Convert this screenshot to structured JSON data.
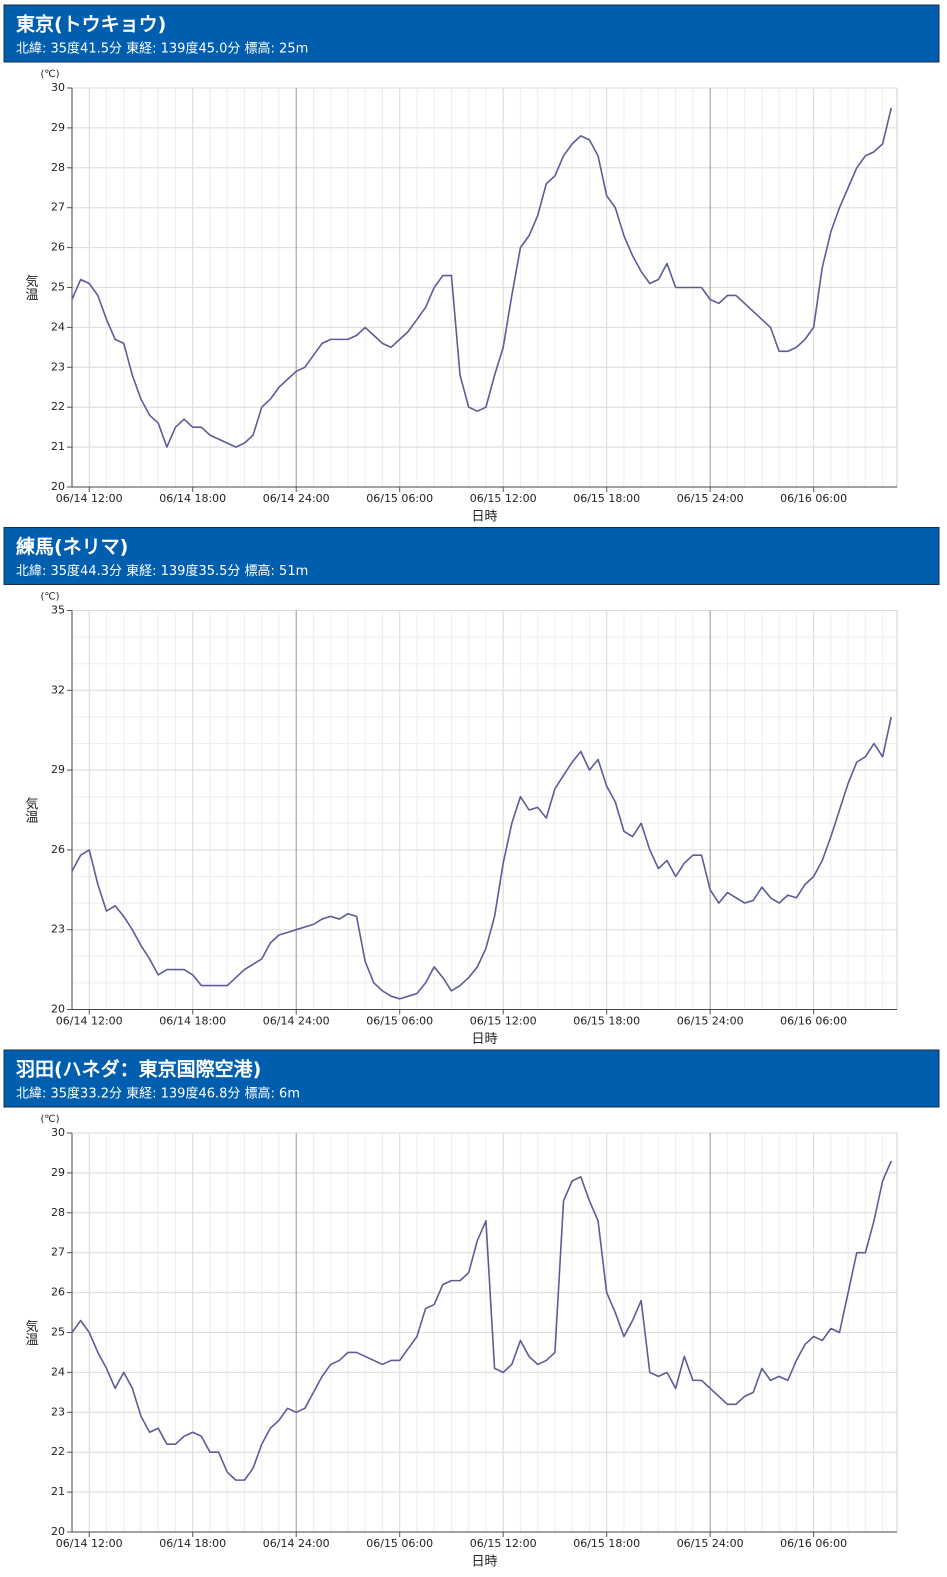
{
  "chart_data": [
    {
      "type": "line",
      "title": "東京(トウキョウ)",
      "subtitle": "北緯: 35度41.5分 東経: 139度45.0分 標高: 25m",
      "y_unit_label": "(℃)",
      "ylabel": "気温",
      "xlabel": "日時",
      "color": "#5c5c98",
      "grid": true,
      "xlim": [
        "06/14 11:00",
        "06/16 10:50"
      ],
      "xticks": [
        "06/14 12:00",
        "06/14 18:00",
        "06/14 24:00",
        "06/15 06:00",
        "06/15 12:00",
        "06/15 18:00",
        "06/15 24:00",
        "06/16 06:00"
      ],
      "ylim": [
        20,
        30
      ],
      "yticks": [
        20,
        21,
        22,
        23,
        24,
        25,
        26,
        27,
        28,
        29,
        30
      ],
      "x": [
        "06/14 11:00",
        "06/14 11:30",
        "06/14 12:00",
        "06/14 12:30",
        "06/14 13:00",
        "06/14 13:30",
        "06/14 14:00",
        "06/14 14:30",
        "06/14 15:00",
        "06/14 15:30",
        "06/14 16:00",
        "06/14 16:30",
        "06/14 17:00",
        "06/14 17:30",
        "06/14 18:00",
        "06/14 18:30",
        "06/14 19:00",
        "06/14 19:30",
        "06/14 20:00",
        "06/14 20:30",
        "06/14 21:00",
        "06/14 21:30",
        "06/14 22:00",
        "06/14 22:30",
        "06/14 23:00",
        "06/14 23:30",
        "06/15 00:00",
        "06/15 00:30",
        "06/15 01:00",
        "06/15 01:30",
        "06/15 02:00",
        "06/15 02:30",
        "06/15 03:00",
        "06/15 03:30",
        "06/15 04:00",
        "06/15 04:30",
        "06/15 05:00",
        "06/15 05:30",
        "06/15 06:00",
        "06/15 06:30",
        "06/15 07:00",
        "06/15 07:30",
        "06/15 08:00",
        "06/15 08:30",
        "06/15 09:00",
        "06/15 09:30",
        "06/15 10:00",
        "06/15 10:30",
        "06/15 11:00",
        "06/15 11:30",
        "06/15 12:00",
        "06/15 12:30",
        "06/15 13:00",
        "06/15 13:30",
        "06/15 14:00",
        "06/15 14:30",
        "06/15 15:00",
        "06/15 15:30",
        "06/15 16:00",
        "06/15 16:30",
        "06/15 17:00",
        "06/15 17:30",
        "06/15 18:00",
        "06/15 18:30",
        "06/15 19:00",
        "06/15 19:30",
        "06/15 20:00",
        "06/15 20:30",
        "06/15 21:00",
        "06/15 21:30",
        "06/15 22:00",
        "06/15 22:30",
        "06/15 23:00",
        "06/15 23:30",
        "06/16 00:00",
        "06/16 00:30",
        "06/16 01:00",
        "06/16 01:30",
        "06/16 02:00",
        "06/16 02:30",
        "06/16 03:00",
        "06/16 03:30",
        "06/16 04:00",
        "06/16 04:30",
        "06/16 05:00",
        "06/16 05:30",
        "06/16 06:00",
        "06/16 06:30",
        "06/16 07:00",
        "06/16 07:30",
        "06/16 08:00",
        "06/16 08:30",
        "06/16 09:00",
        "06/16 09:30",
        "06/16 10:00",
        "06/16 10:30"
      ],
      "values": [
        24.7,
        25.2,
        25.1,
        24.8,
        24.2,
        23.7,
        23.6,
        22.8,
        22.2,
        21.8,
        21.6,
        21.0,
        21.5,
        21.7,
        21.5,
        21.5,
        21.3,
        21.2,
        21.1,
        21.0,
        21.1,
        21.3,
        22.0,
        22.2,
        22.5,
        22.7,
        22.9,
        23.0,
        23.3,
        23.6,
        23.7,
        23.7,
        23.7,
        23.8,
        24.0,
        23.8,
        23.6,
        23.5,
        23.7,
        23.9,
        24.2,
        24.5,
        25.0,
        25.3,
        25.3,
        22.8,
        22.0,
        21.9,
        22.0,
        22.8,
        23.5,
        24.8,
        26.0,
        26.3,
        26.8,
        27.6,
        27.8,
        28.3,
        28.6,
        28.8,
        28.7,
        28.3,
        27.3,
        27.0,
        26.3,
        25.8,
        25.4,
        25.1,
        25.2,
        25.6,
        25.0,
        25.0,
        25.0,
        25.0,
        24.7,
        24.6,
        24.8,
        24.8,
        24.6,
        24.4,
        24.2,
        24.0,
        23.4,
        23.4,
        23.5,
        23.7,
        24.0,
        25.5,
        26.4,
        27.0,
        27.5,
        28.0,
        28.3,
        28.4,
        28.6,
        29.5
      ]
    },
    {
      "type": "line",
      "title": "練馬(ネリマ)",
      "subtitle": "北緯: 35度44.3分 東経: 139度35.5分 標高: 51m",
      "y_unit_label": "(℃)",
      "ylabel": "気温",
      "xlabel": "日時",
      "color": "#5c5c98",
      "grid": true,
      "xlim": [
        "06/14 11:00",
        "06/16 10:50"
      ],
      "xticks": [
        "06/14 12:00",
        "06/14 18:00",
        "06/14 24:00",
        "06/15 06:00",
        "06/15 12:00",
        "06/15 18:00",
        "06/15 24:00",
        "06/16 06:00"
      ],
      "ylim": [
        20,
        35
      ],
      "yticks": [
        20,
        23,
        26,
        29,
        32,
        35
      ],
      "x": [
        "06/14 11:00",
        "06/14 11:30",
        "06/14 12:00",
        "06/14 12:30",
        "06/14 13:00",
        "06/14 13:30",
        "06/14 14:00",
        "06/14 14:30",
        "06/14 15:00",
        "06/14 15:30",
        "06/14 16:00",
        "06/14 16:30",
        "06/14 17:00",
        "06/14 17:30",
        "06/14 18:00",
        "06/14 18:30",
        "06/14 19:00",
        "06/14 19:30",
        "06/14 20:00",
        "06/14 20:30",
        "06/14 21:00",
        "06/14 21:30",
        "06/14 22:00",
        "06/14 22:30",
        "06/14 23:00",
        "06/14 23:30",
        "06/15 00:00",
        "06/15 00:30",
        "06/15 01:00",
        "06/15 01:30",
        "06/15 02:00",
        "06/15 02:30",
        "06/15 03:00",
        "06/15 03:30",
        "06/15 04:00",
        "06/15 04:30",
        "06/15 05:00",
        "06/15 05:30",
        "06/15 06:00",
        "06/15 06:30",
        "06/15 07:00",
        "06/15 07:30",
        "06/15 08:00",
        "06/15 08:30",
        "06/15 09:00",
        "06/15 09:30",
        "06/15 10:00",
        "06/15 10:30",
        "06/15 11:00",
        "06/15 11:30",
        "06/15 12:00",
        "06/15 12:30",
        "06/15 13:00",
        "06/15 13:30",
        "06/15 14:00",
        "06/15 14:30",
        "06/15 15:00",
        "06/15 15:30",
        "06/15 16:00",
        "06/15 16:30",
        "06/15 17:00",
        "06/15 17:30",
        "06/15 18:00",
        "06/15 18:30",
        "06/15 19:00",
        "06/15 19:30",
        "06/15 20:00",
        "06/15 20:30",
        "06/15 21:00",
        "06/15 21:30",
        "06/15 22:00",
        "06/15 22:30",
        "06/15 23:00",
        "06/15 23:30",
        "06/16 00:00",
        "06/16 00:30",
        "06/16 01:00",
        "06/16 01:30",
        "06/16 02:00",
        "06/16 02:30",
        "06/16 03:00",
        "06/16 03:30",
        "06/16 04:00",
        "06/16 04:30",
        "06/16 05:00",
        "06/16 05:30",
        "06/16 06:00",
        "06/16 06:30",
        "06/16 07:00",
        "06/16 07:30",
        "06/16 08:00",
        "06/16 08:30",
        "06/16 09:00",
        "06/16 09:30",
        "06/16 10:00",
        "06/16 10:30"
      ],
      "values": [
        25.2,
        25.8,
        26.0,
        24.7,
        23.7,
        23.9,
        23.5,
        23.0,
        22.4,
        21.9,
        21.3,
        21.5,
        21.5,
        21.5,
        21.3,
        20.9,
        20.9,
        20.9,
        20.9,
        21.2,
        21.5,
        21.7,
        21.9,
        22.5,
        22.8,
        22.9,
        23.0,
        23.1,
        23.2,
        23.4,
        23.5,
        23.4,
        23.6,
        23.5,
        21.8,
        21.0,
        20.7,
        20.5,
        20.4,
        20.5,
        20.6,
        21.0,
        21.6,
        21.2,
        20.7,
        20.9,
        21.2,
        21.6,
        22.3,
        23.5,
        25.5,
        27.0,
        28.0,
        27.5,
        27.6,
        27.2,
        28.3,
        28.8,
        29.3,
        29.7,
        29.0,
        29.4,
        28.4,
        27.8,
        26.7,
        26.5,
        27.0,
        26.0,
        25.3,
        25.6,
        25.0,
        25.5,
        25.8,
        25.8,
        24.5,
        24.0,
        24.4,
        24.2,
        24.0,
        24.1,
        24.6,
        24.2,
        24.0,
        24.3,
        24.2,
        24.7,
        25.0,
        25.6,
        26.5,
        27.5,
        28.5,
        29.3,
        29.5,
        30.0,
        29.5,
        31.0
      ]
    },
    {
      "type": "line",
      "title": "羽田(ハネダ：東京国際空港)",
      "subtitle": "北緯: 35度33.2分 東経: 139度46.8分 標高: 6m",
      "y_unit_label": "(℃)",
      "ylabel": "気温",
      "xlabel": "日時",
      "color": "#5c5c98",
      "grid": true,
      "xlim": [
        "06/14 11:00",
        "06/16 10:50"
      ],
      "xticks": [
        "06/14 12:00",
        "06/14 18:00",
        "06/14 24:00",
        "06/15 06:00",
        "06/15 12:00",
        "06/15 18:00",
        "06/15 24:00",
        "06/16 06:00"
      ],
      "ylim": [
        20,
        30
      ],
      "yticks": [
        20,
        21,
        22,
        23,
        24,
        25,
        26,
        27,
        28,
        29,
        30
      ],
      "x": [
        "06/14 11:00",
        "06/14 11:30",
        "06/14 12:00",
        "06/14 12:30",
        "06/14 13:00",
        "06/14 13:30",
        "06/14 14:00",
        "06/14 14:30",
        "06/14 15:00",
        "06/14 15:30",
        "06/14 16:00",
        "06/14 16:30",
        "06/14 17:00",
        "06/14 17:30",
        "06/14 18:00",
        "06/14 18:30",
        "06/14 19:00",
        "06/14 19:30",
        "06/14 20:00",
        "06/14 20:30",
        "06/14 21:00",
        "06/14 21:30",
        "06/14 22:00",
        "06/14 22:30",
        "06/14 23:00",
        "06/14 23:30",
        "06/15 00:00",
        "06/15 00:30",
        "06/15 01:00",
        "06/15 01:30",
        "06/15 02:00",
        "06/15 02:30",
        "06/15 03:00",
        "06/15 03:30",
        "06/15 04:00",
        "06/15 04:30",
        "06/15 05:00",
        "06/15 05:30",
        "06/15 06:00",
        "06/15 06:30",
        "06/15 07:00",
        "06/15 07:30",
        "06/15 08:00",
        "06/15 08:30",
        "06/15 09:00",
        "06/15 09:30",
        "06/15 10:00",
        "06/15 10:30",
        "06/15 11:00",
        "06/15 11:30",
        "06/15 12:00",
        "06/15 12:30",
        "06/15 13:00",
        "06/15 13:30",
        "06/15 14:00",
        "06/15 14:30",
        "06/15 15:00",
        "06/15 15:30",
        "06/15 16:00",
        "06/15 16:30",
        "06/15 17:00",
        "06/15 17:30",
        "06/15 18:00",
        "06/15 18:30",
        "06/15 19:00",
        "06/15 19:30",
        "06/15 20:00",
        "06/15 20:30",
        "06/15 21:00",
        "06/15 21:30",
        "06/15 22:00",
        "06/15 22:30",
        "06/15 23:00",
        "06/15 23:30",
        "06/16 00:00",
        "06/16 00:30",
        "06/16 01:00",
        "06/16 01:30",
        "06/16 02:00",
        "06/16 02:30",
        "06/16 03:00",
        "06/16 03:30",
        "06/16 04:00",
        "06/16 04:30",
        "06/16 05:00",
        "06/16 05:30",
        "06/16 06:00",
        "06/16 06:30",
        "06/16 07:00",
        "06/16 07:30",
        "06/16 08:00",
        "06/16 08:30",
        "06/16 09:00",
        "06/16 09:30",
        "06/16 10:00",
        "06/16 10:30"
      ],
      "values": [
        25.0,
        25.3,
        25.0,
        24.5,
        24.1,
        23.6,
        24.0,
        23.6,
        22.9,
        22.5,
        22.6,
        22.2,
        22.2,
        22.4,
        22.5,
        22.4,
        22.0,
        22.0,
        21.5,
        21.3,
        21.3,
        21.6,
        22.2,
        22.6,
        22.8,
        23.1,
        23.0,
        23.1,
        23.5,
        23.9,
        24.2,
        24.3,
        24.5,
        24.5,
        24.4,
        24.3,
        24.2,
        24.3,
        24.3,
        24.6,
        24.9,
        25.6,
        25.7,
        26.2,
        26.3,
        26.3,
        26.5,
        27.3,
        27.8,
        24.1,
        24.0,
        24.2,
        24.8,
        24.4,
        24.2,
        24.3,
        24.5,
        28.3,
        28.8,
        28.9,
        28.3,
        27.8,
        26.0,
        25.5,
        24.9,
        25.3,
        25.8,
        24.0,
        23.9,
        24.0,
        23.6,
        24.4,
        23.8,
        23.8,
        23.6,
        23.4,
        23.2,
        23.2,
        23.4,
        23.5,
        24.1,
        23.8,
        23.9,
        23.8,
        24.3,
        24.7,
        24.9,
        24.8,
        25.1,
        25.0,
        26.0,
        27.0,
        27.0,
        27.8,
        28.8,
        29.3
      ]
    }
  ]
}
